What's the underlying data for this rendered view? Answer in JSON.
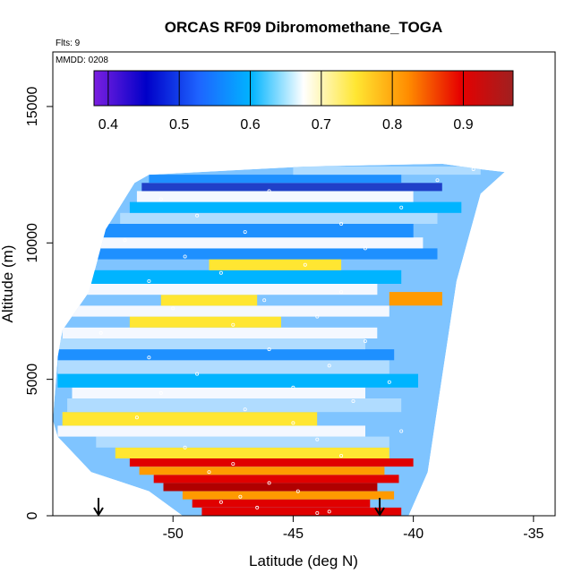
{
  "chart_data": {
    "type": "heatmap",
    "title": "ORCAS RF09 Dibromomethane_TOGA",
    "flts_label": "Flts: 9",
    "mmdd_label": "MMDD: 0208",
    "xlabel": "Latitude (deg N)",
    "ylabel": "Altitude (m)",
    "xlim": [
      -55,
      -34.1
    ],
    "ylim": [
      0,
      17000
    ],
    "x_ticks": [
      -50,
      -45,
      -40,
      -35
    ],
    "x_tick_labels": [
      "-50",
      "-45",
      "-40",
      "-35"
    ],
    "y_ticks": [
      0,
      5000,
      10000,
      15000
    ],
    "y_tick_labels": [
      "0",
      "5000",
      "10000",
      "15000"
    ],
    "colorbar": {
      "range": [
        0.38,
        0.97
      ],
      "ticks": [
        0.4,
        0.5,
        0.6,
        0.7,
        0.8,
        0.9
      ],
      "tick_labels": [
        "0.4",
        "0.5",
        "0.6",
        "0.7",
        "0.8",
        "0.9"
      ],
      "colors": [
        "#7b1fe0",
        "#0000c8",
        "#1e64ff",
        "#00b4ff",
        "#ffffff",
        "#ffe632",
        "#ff8c00",
        "#e60000",
        "#a02020"
      ]
    },
    "colors": {
      "dark_blue": "#2040c8",
      "mid_blue": "#1e90ff",
      "sky_blue": "#00b4ff",
      "light_blue": "#b0dcff",
      "pale": "#f4f8ff",
      "yellow": "#ffe632",
      "orange": "#ff9a00",
      "red": "#e00000",
      "dark_red": "#b00000"
    },
    "profile_markers_x": [
      -53.1,
      -41.4
    ],
    "domain_polygon": [
      [
        -49.6,
        0
      ],
      [
        -40.2,
        0
      ],
      [
        -39.4,
        1600
      ],
      [
        -38.2,
        8600
      ],
      [
        -37.2,
        11800
      ],
      [
        -36.2,
        12600
      ],
      [
        -37.2,
        12700
      ],
      [
        -38.8,
        12900
      ],
      [
        -44.5,
        12800
      ],
      [
        -51,
        12500
      ],
      [
        -51.6,
        12200
      ],
      [
        -52.8,
        10500
      ],
      [
        -53.5,
        8200
      ],
      [
        -54.6,
        6800
      ],
      [
        -54.8,
        5800
      ],
      [
        -55,
        3500
      ],
      [
        -54.8,
        2900
      ],
      [
        -53.4,
        1600
      ],
      [
        -51,
        900
      ]
    ],
    "bands": [
      {
        "y0": 0,
        "y1": 300,
        "x0": -48.8,
        "x1": -40.5,
        "color": "red"
      },
      {
        "y0": 300,
        "y1": 600,
        "x0": -49.2,
        "x1": -41.8,
        "color": "red"
      },
      {
        "y0": 600,
        "y1": 900,
        "x0": -49.6,
        "x1": -40.8,
        "color": "orange"
      },
      {
        "y0": 900,
        "y1": 1200,
        "x0": -50.4,
        "x1": -41.5,
        "color": "dark_red"
      },
      {
        "y0": 1200,
        "y1": 1500,
        "x0": -50.8,
        "x1": -40.6,
        "color": "red"
      },
      {
        "y0": 1500,
        "y1": 1800,
        "x0": -51.4,
        "x1": -41.2,
        "color": "orange"
      },
      {
        "y0": 1800,
        "y1": 2100,
        "x0": -51.8,
        "x1": -40.0,
        "color": "red"
      },
      {
        "y0": 2100,
        "y1": 2500,
        "x0": -52.4,
        "x1": -41.0,
        "color": "yellow"
      },
      {
        "y0": 2500,
        "y1": 2900,
        "x0": -53.2,
        "x1": -41.0,
        "color": "light_blue"
      },
      {
        "y0": 2900,
        "y1": 3300,
        "x0": -54.8,
        "x1": -42.0,
        "color": "pale"
      },
      {
        "y0": 3300,
        "y1": 3800,
        "x0": -54.6,
        "x1": -44.0,
        "color": "yellow"
      },
      {
        "y0": 3800,
        "y1": 4300,
        "x0": -54.4,
        "x1": -40.5,
        "color": "light_blue"
      },
      {
        "y0": 4300,
        "y1": 4700,
        "x0": -54.2,
        "x1": -42.0,
        "color": "pale"
      },
      {
        "y0": 4700,
        "y1": 5200,
        "x0": -54.8,
        "x1": -39.8,
        "color": "sky_blue"
      },
      {
        "y0": 5200,
        "y1": 5700,
        "x0": -54.8,
        "x1": -41.0,
        "color": "light_blue"
      },
      {
        "y0": 5700,
        "y1": 6100,
        "x0": -54.8,
        "x1": -40.8,
        "color": "mid_blue"
      },
      {
        "y0": 6100,
        "y1": 6500,
        "x0": -54.8,
        "x1": -42.0,
        "color": "light_blue"
      },
      {
        "y0": 6500,
        "y1": 6900,
        "x0": -54.6,
        "x1": -41.5,
        "color": "pale"
      },
      {
        "y0": 6900,
        "y1": 7300,
        "x0": -51.8,
        "x1": -45.5,
        "color": "yellow"
      },
      {
        "y0": 7300,
        "y1": 7700,
        "x0": -54.2,
        "x1": -41.0,
        "color": "pale"
      },
      {
        "y0": 7700,
        "y1": 8100,
        "x0": -50.5,
        "x1": -46.5,
        "color": "yellow"
      },
      {
        "y0": 7700,
        "y1": 8200,
        "x0": -41.0,
        "x1": -38.8,
        "color": "orange"
      },
      {
        "y0": 8100,
        "y1": 8500,
        "x0": -53.8,
        "x1": -41.5,
        "color": "pale"
      },
      {
        "y0": 8500,
        "y1": 9000,
        "x0": -53.4,
        "x1": -40.5,
        "color": "sky_blue"
      },
      {
        "y0": 9000,
        "y1": 9400,
        "x0": -48.5,
        "x1": -43.0,
        "color": "yellow"
      },
      {
        "y0": 9400,
        "y1": 9800,
        "x0": -53.2,
        "x1": -39.0,
        "color": "mid_blue"
      },
      {
        "y0": 9800,
        "y1": 10200,
        "x0": -53.0,
        "x1": -39.6,
        "color": "pale"
      },
      {
        "y0": 10200,
        "y1": 10700,
        "x0": -52.9,
        "x1": -40.0,
        "color": "mid_blue"
      },
      {
        "y0": 10700,
        "y1": 11100,
        "x0": -52.2,
        "x1": -39.0,
        "color": "light_blue"
      },
      {
        "y0": 11100,
        "y1": 11500,
        "x0": -51.8,
        "x1": -38.0,
        "color": "sky_blue"
      },
      {
        "y0": 11500,
        "y1": 11900,
        "x0": -51.5,
        "x1": -40.0,
        "color": "pale"
      },
      {
        "y0": 11900,
        "y1": 12200,
        "x0": -51.3,
        "x1": -38.8,
        "color": "dark_blue"
      },
      {
        "y0": 12200,
        "y1": 12500,
        "x0": -51.0,
        "x1": -40.5,
        "color": "mid_blue"
      },
      {
        "y0": 12500,
        "y1": 12800,
        "x0": -45.0,
        "x1": -37.2,
        "color": "light_blue"
      }
    ],
    "sample_points": [
      [
        -44,
        100
      ],
      [
        -43.5,
        150
      ],
      [
        -46.5,
        300
      ],
      [
        -48,
        500
      ],
      [
        -47.2,
        700
      ],
      [
        -44.8,
        900
      ],
      [
        -46,
        1200
      ],
      [
        -48.5,
        1600
      ],
      [
        -47.5,
        1900
      ],
      [
        -43,
        2200
      ],
      [
        -49.5,
        2500
      ],
      [
        -44,
        2800
      ],
      [
        -40.5,
        3100
      ],
      [
        -45,
        3400
      ],
      [
        -51.5,
        3600
      ],
      [
        -47,
        3900
      ],
      [
        -42.5,
        4200
      ],
      [
        -50.5,
        4500
      ],
      [
        -45,
        4700
      ],
      [
        -41,
        4900
      ],
      [
        -49,
        5200
      ],
      [
        -43.5,
        5500
      ],
      [
        -51,
        5800
      ],
      [
        -46,
        6100
      ],
      [
        -42,
        6400
      ],
      [
        -53,
        6700
      ],
      [
        -47.5,
        7000
      ],
      [
        -44,
        7300
      ],
      [
        -50,
        7600
      ],
      [
        -46.2,
        7900
      ],
      [
        -43,
        8200
      ],
      [
        -51,
        8600
      ],
      [
        -48,
        8900
      ],
      [
        -44.5,
        9200
      ],
      [
        -49.5,
        9500
      ],
      [
        -42,
        9800
      ],
      [
        -52,
        10100
      ],
      [
        -47,
        10400
      ],
      [
        -43,
        10700
      ],
      [
        -49,
        11000
      ],
      [
        -40.5,
        11300
      ],
      [
        -50.5,
        11600
      ],
      [
        -46,
        11900
      ],
      [
        -39,
        12300
      ],
      [
        -37.5,
        12700
      ],
      [
        -36,
        12650
      ]
    ]
  }
}
